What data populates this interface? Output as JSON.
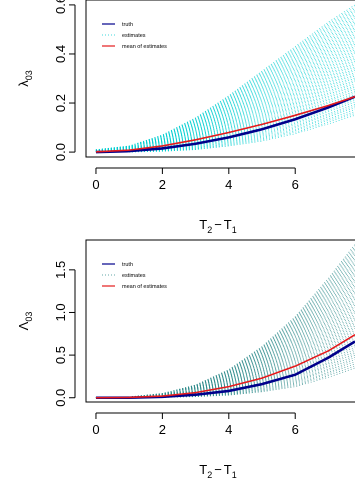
{
  "chart_data": [
    {
      "type": "line",
      "ylabel": "λ",
      "ylabel_sub": "03",
      "xlabel_parts": [
        "T",
        "2",
        "−",
        "T",
        "1"
      ],
      "xlim": [
        -0.3,
        7.8
      ],
      "ylim": [
        -0.02,
        0.62
      ],
      "x_ticks": [
        0,
        2,
        4,
        6
      ],
      "y_ticks": [
        0.0,
        0.2,
        0.4,
        0.6
      ],
      "y_tick_labels": [
        "0.0",
        "0.2",
        "0.4",
        "0.6"
      ],
      "grid": false,
      "legend_position": "top-left",
      "series": [
        {
          "name": "truth",
          "color": "#00008b",
          "style": "solid",
          "x": [
            0,
            1,
            2,
            3,
            4,
            5,
            6,
            7,
            7.8
          ],
          "y": [
            0.0,
            0.004,
            0.015,
            0.034,
            0.06,
            0.093,
            0.134,
            0.182,
            0.226
          ]
        },
        {
          "name": "estimates",
          "color": "#00ced1",
          "style": "dotted",
          "count": 60,
          "upper_envelope": {
            "x": [
              0,
              1,
              2,
              3,
              4,
              5,
              6,
              7,
              7.8
            ],
            "y": [
              0.01,
              0.025,
              0.07,
              0.14,
              0.23,
              0.33,
              0.43,
              0.53,
              0.6
            ]
          },
          "lower_envelope": {
            "x": [
              0,
              1,
              2,
              3,
              4,
              5,
              6,
              7,
              7.8
            ],
            "y": [
              0.0,
              0.0,
              0.003,
              0.01,
              0.025,
              0.045,
              0.075,
              0.115,
              0.15
            ]
          }
        },
        {
          "name": "mean of estimates",
          "color": "#e41a1c",
          "style": "solid",
          "x": [
            0,
            1,
            2,
            3,
            4,
            5,
            6,
            7,
            7.8
          ],
          "y": [
            0.001,
            0.008,
            0.025,
            0.05,
            0.08,
            0.113,
            0.15,
            0.19,
            0.226
          ]
        }
      ]
    },
    {
      "type": "line",
      "ylabel": "Λ",
      "ylabel_sub": "03",
      "xlabel_parts": [
        "T",
        "2",
        "−",
        "T",
        "1"
      ],
      "xlim": [
        -0.3,
        7.8
      ],
      "ylim": [
        -0.05,
        1.85
      ],
      "x_ticks": [
        0,
        2,
        4,
        6
      ],
      "y_ticks": [
        0.0,
        0.5,
        1.0,
        1.5
      ],
      "y_tick_labels": [
        "0.0",
        "0.5",
        "1.0",
        "1.5"
      ],
      "grid": false,
      "legend_position": "top-left",
      "series": [
        {
          "name": "truth",
          "color": "#00008b",
          "style": "solid",
          "x": [
            0,
            1,
            2,
            3,
            4,
            5,
            6,
            7,
            7.8
          ],
          "y": [
            0.0,
            0.001,
            0.01,
            0.035,
            0.08,
            0.16,
            0.27,
            0.47,
            0.66
          ]
        },
        {
          "name": "estimates",
          "color": "#2e8b8b",
          "style": "dotted",
          "count": 60,
          "upper_envelope": {
            "x": [
              0,
              1,
              2,
              3,
              4,
              5,
              6,
              7,
              7.8
            ],
            "y": [
              0.0,
              0.01,
              0.05,
              0.15,
              0.33,
              0.6,
              0.95,
              1.4,
              1.8
            ]
          },
          "lower_envelope": {
            "x": [
              0,
              1,
              2,
              3,
              4,
              5,
              6,
              7,
              7.8
            ],
            "y": [
              0.0,
              0.0,
              0.003,
              0.012,
              0.03,
              0.07,
              0.13,
              0.24,
              0.35
            ]
          }
        },
        {
          "name": "mean of estimates",
          "color": "#e41a1c",
          "style": "solid",
          "x": [
            0,
            1,
            2,
            3,
            4,
            5,
            6,
            7,
            7.8
          ],
          "y": [
            0.0,
            0.003,
            0.02,
            0.06,
            0.13,
            0.23,
            0.37,
            0.55,
            0.74
          ]
        }
      ]
    }
  ]
}
